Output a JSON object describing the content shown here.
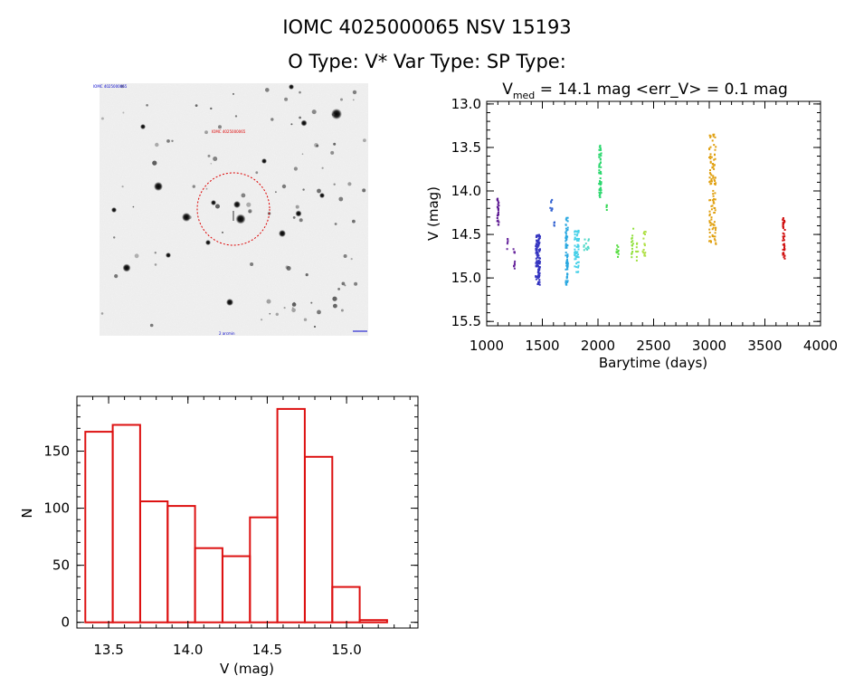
{
  "header": {
    "title_line1": "IOMC 4025000065    NSV 15193",
    "title_line2": "O Type: V*   Var Type:    SP Type:"
  },
  "image_panel": {
    "top_left_label": "IOMC 4025000065",
    "target_label": "IOMC 4025000065",
    "bottom_label": "2 arcmin",
    "circle_color": "#dd0000"
  },
  "chart_data": [
    {
      "type": "scatter",
      "title_main": "V",
      "title_sub": "med",
      "title_rest": " = 14.1 mag <err_V> = 0.1 mag",
      "xlabel": "Barytime (days)",
      "ylabel": "V (mag)",
      "xlim": [
        1000,
        4000
      ],
      "ylim": [
        15.55,
        12.97
      ],
      "xticks": [
        "1000",
        "1500",
        "2000",
        "2500",
        "3000",
        "3500",
        "4000"
      ],
      "yticks": [
        "13.0",
        "13.5",
        "14.0",
        "14.5",
        "15.0",
        "15.5"
      ],
      "clusters": [
        {
          "x": [
            1095,
            1110
          ],
          "y": [
            14.08,
            14.4
          ],
          "color": "#5a1590",
          "n": 24
        },
        {
          "x": [
            1180,
            1190
          ],
          "y": [
            14.55,
            14.68
          ],
          "color": "#6a2a9e",
          "n": 6
        },
        {
          "x": [
            1240,
            1255
          ],
          "y": [
            14.62,
            14.9
          ],
          "color": "#6a2a9e",
          "n": 12
        },
        {
          "x": [
            1440,
            1480
          ],
          "y": [
            14.5,
            15.08
          ],
          "color": "#3535c0",
          "n": 110
        },
        {
          "x": [
            1570,
            1590
          ],
          "y": [
            14.1,
            14.25
          ],
          "color": "#2f5fd0",
          "n": 8
        },
        {
          "x": [
            1605,
            1615
          ],
          "y": [
            14.36,
            14.42
          ],
          "color": "#2f5fd0",
          "n": 4
        },
        {
          "x": [
            1710,
            1730
          ],
          "y": [
            14.3,
            15.1
          ],
          "color": "#2aa8e0",
          "n": 70
        },
        {
          "x": [
            1790,
            1830
          ],
          "y": [
            14.45,
            14.95
          ],
          "color": "#45d0e8",
          "n": 55
        },
        {
          "x": [
            1870,
            1920
          ],
          "y": [
            14.55,
            14.7
          ],
          "color": "#50d8c8",
          "n": 12
        },
        {
          "x": [
            2010,
            2030
          ],
          "y": [
            13.47,
            14.08
          ],
          "color": "#2ed870",
          "n": 60
        },
        {
          "x": [
            2070,
            2080
          ],
          "y": [
            14.15,
            14.22
          ],
          "color": "#35d855",
          "n": 4
        },
        {
          "x": [
            2160,
            2185
          ],
          "y": [
            14.62,
            14.78
          ],
          "color": "#55dd40",
          "n": 10
        },
        {
          "x": [
            2300,
            2320
          ],
          "y": [
            14.38,
            14.8
          ],
          "color": "#8ee03a",
          "n": 14
        },
        {
          "x": [
            2340,
            2360
          ],
          "y": [
            14.6,
            14.82
          ],
          "color": "#a0e040",
          "n": 8
        },
        {
          "x": [
            2400,
            2430
          ],
          "y": [
            14.4,
            14.75
          ],
          "color": "#b0e048",
          "n": 16
        },
        {
          "x": [
            3000,
            3060
          ],
          "y": [
            13.35,
            14.62
          ],
          "color": "#e0a010",
          "n": 110
        },
        {
          "x": [
            3660,
            3680
          ],
          "y": [
            14.27,
            14.8
          ],
          "color": "#d01010",
          "n": 40
        }
      ]
    },
    {
      "type": "bar",
      "xlabel": "V (mag)",
      "ylabel": "N",
      "xlim": [
        13.3,
        15.45
      ],
      "ylim": [
        -5,
        198
      ],
      "xticks": [
        "13.5",
        "14.0",
        "14.5",
        "15.0"
      ],
      "yticks": [
        "0",
        "50",
        "100",
        "150"
      ],
      "bin_width": 0.173,
      "bin_starts": [
        13.353,
        13.526,
        13.699,
        13.872,
        14.045,
        14.218,
        14.391,
        14.564,
        14.737,
        14.91,
        15.083
      ],
      "values": [
        167,
        173,
        106,
        102,
        65,
        58,
        92,
        187,
        145,
        31,
        2
      ],
      "color": "#dd1111"
    }
  ]
}
